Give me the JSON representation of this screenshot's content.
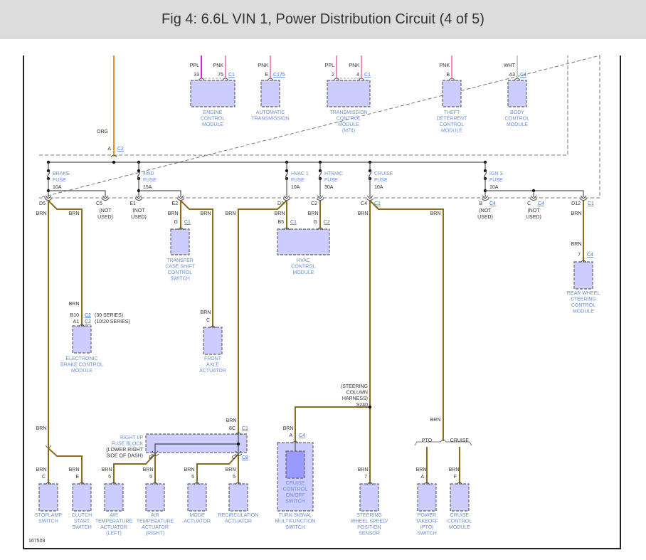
{
  "title": "Fig 4: 6.6L VIN 1, Power Distribution Circuit (4 of 5)",
  "diagram_id": "167503",
  "colors": {
    "brown_wire": "#8b6c1c",
    "orange_wire": "#f08c28",
    "ppl_wire": "#e020e0",
    "pnk_wire": "#f08cc0",
    "wht_wire": "#cccccc",
    "component_fill": "#ccccff",
    "inner_component_fill": "#9999ff",
    "label_blue": "#6b8fd6"
  },
  "feed": {
    "wire": "ORG",
    "pin": "A",
    "connector": "C2"
  },
  "top_modules": [
    {
      "label": [
        "ENGINE",
        "CONTROL",
        "MODULE"
      ],
      "pins": [
        {
          "wire": "PPL",
          "pin": "33"
        },
        {
          "wire": "PNK",
          "pin": "75"
        }
      ],
      "connector": "C1"
    },
    {
      "label": [
        "AUTOMATIC",
        "TRANSMISSION"
      ],
      "pins": [
        {
          "wire": "PNK",
          "pin": "E"
        }
      ],
      "connector": "C175"
    },
    {
      "label": [
        "TRANSMISSION",
        "CONTROL",
        "MODULE",
        "(M74)"
      ],
      "pins": [
        {
          "wire": "PPL",
          "pin": "2"
        },
        {
          "wire": "PNK",
          "pin": "4"
        }
      ],
      "connector": "C1"
    },
    {
      "label": [
        "THEFT",
        "DETERRENT",
        "CONTROL",
        "MODULE"
      ],
      "pins": [
        {
          "wire": "PNK",
          "pin": "B"
        }
      ],
      "connector": ""
    },
    {
      "label": [
        "BODY",
        "CONTROL",
        "MODULE"
      ],
      "pins": [
        {
          "wire": "WHT",
          "pin": "A3"
        }
      ],
      "connector": "C4"
    }
  ],
  "fuses": [
    {
      "name": "BRAKE",
      "type": "FUSE",
      "rating": "10A"
    },
    {
      "name": "4WD",
      "type": "FUSE",
      "rating": "15A"
    },
    {
      "name": "HVAC 1",
      "type": "FUSE",
      "rating": "10A"
    },
    {
      "name": "HTR/AC",
      "type": "FUSE",
      "rating": "30A"
    },
    {
      "name": "CRUISE",
      "type": "FUSE",
      "rating": "10A"
    },
    {
      "name": "IGN 3",
      "type": "FUSE",
      "rating": "10A"
    }
  ],
  "fuse_outputs": [
    {
      "pin": "D5",
      "connector": "",
      "note": []
    },
    {
      "pin": "C5",
      "connector": "",
      "note": [
        "(NOT",
        "USED)"
      ]
    },
    {
      "pin": "E1",
      "connector": "",
      "note": [
        "(NOT",
        "USED)"
      ]
    },
    {
      "pin": "E2",
      "connector": "",
      "note": []
    },
    {
      "pin": "D3",
      "connector": "",
      "note": []
    },
    {
      "pin": "C2",
      "connector": "",
      "note": []
    },
    {
      "pin": "C4",
      "connector": "C1",
      "note": []
    },
    {
      "pin": "B",
      "connector": "C4",
      "note": [
        "(NOT",
        "USED)"
      ]
    },
    {
      "pin": "C",
      "connector": "C4",
      "note": [
        "(NOT",
        "USED)"
      ]
    },
    {
      "pin": "D12",
      "connector": "C1",
      "note": []
    }
  ],
  "wires": {
    "brn": "BRN"
  },
  "components": [
    {
      "label": [
        "ELECTRONIC",
        "BRAKE CONTROL",
        "MODULE"
      ],
      "pins": [
        {
          "pin": "B10",
          "connector": "C2",
          "note": "(30 SERIES)"
        },
        {
          "pin": "A1",
          "connector": "C2",
          "note": "(10/20 SERIES)"
        }
      ]
    },
    {
      "label": [
        "TRANSFER",
        "CASE SHIFT",
        "CONTROL",
        "SWITCH"
      ],
      "pins": [
        {
          "pin": "G",
          "connector": "C1"
        }
      ]
    },
    {
      "label": [
        "HVAC",
        "CONTROL",
        "MODULE"
      ],
      "pins": [
        {
          "pin": "B5",
          "connector": "C1"
        },
        {
          "pin": "G",
          "connector": "C2"
        }
      ]
    },
    {
      "label": [
        "FRONT",
        "AXLE",
        "ACTUATOR"
      ],
      "pins": [
        {
          "pin": "C",
          "connector": ""
        }
      ]
    },
    {
      "label": [
        "REAR WHEEL",
        "STEERING",
        "CONTROL",
        "MODULE"
      ],
      "pins": [
        {
          "pin": "7",
          "connector": "C4"
        }
      ]
    },
    {
      "label": [
        "STOPLAMP",
        "SWITCH"
      ],
      "pins": [
        {
          "pin": "C",
          "connector": ""
        }
      ]
    },
    {
      "label": [
        "CLUTCH",
        "START",
        "SWITCH"
      ],
      "pins": [
        {
          "pin": "E",
          "connector": ""
        }
      ]
    },
    {
      "label": [
        "AIR",
        "TEMPERATURE",
        "ACTUATOR",
        "(LEFT)"
      ],
      "pins": [
        {
          "pin": "5",
          "connector": ""
        }
      ]
    },
    {
      "label": [
        "AIR",
        "TEMPERATURE",
        "ACTUATOR",
        "(RIGHT)"
      ],
      "pins": [
        {
          "pin": "5",
          "connector": ""
        }
      ]
    },
    {
      "label": [
        "MODE",
        "ACTUATOR"
      ],
      "pins": [
        {
          "pin": "5",
          "connector": ""
        }
      ]
    },
    {
      "label": [
        "RECIRCULATION",
        "ACTUATOR"
      ],
      "pins": [
        {
          "pin": "5",
          "connector": ""
        }
      ]
    },
    {
      "label": [
        "TURN SIGNAL",
        "MULTIFUNCTION",
        "SWITCH"
      ],
      "pins": [
        {
          "pin": "A",
          "connector": "C4"
        }
      ],
      "inner_label": [
        "CRUISE",
        "CONTROL",
        "ON/OFF",
        "SWITCH"
      ]
    },
    {
      "label": [
        "STEERING",
        "WHEEL SPEED/",
        "POSITION",
        "SENSOR"
      ],
      "pins": [
        {
          "pin": "7",
          "connector": ""
        }
      ]
    },
    {
      "label": [
        "POWER",
        "TAKEOFF",
        "(PTO)",
        "SWITCH"
      ],
      "pins": [
        {
          "pin": "A",
          "connector": ""
        }
      ]
    },
    {
      "label": [
        "CRUISE",
        "CONTROL",
        "MODULE"
      ],
      "pins": [
        {
          "pin": "F",
          "connector": ""
        }
      ]
    }
  ],
  "ip_fuse_block": {
    "label": [
      "RIGHT I/P",
      "FUSE BLOCK",
      "(LOWER RIGHT",
      "SIDE OF DASH)"
    ],
    "input": {
      "pin": "8C",
      "connector": "C1"
    },
    "outputs": [
      {
        "pin": "B",
        "connector": ""
      },
      {
        "pin": "C",
        "connector": "C8"
      }
    ]
  },
  "splice": {
    "id": "S240",
    "note": [
      "(STEERING",
      "COLUMN",
      "HARNESS)"
    ]
  },
  "options": [
    "PTO",
    "CRUISE"
  ]
}
